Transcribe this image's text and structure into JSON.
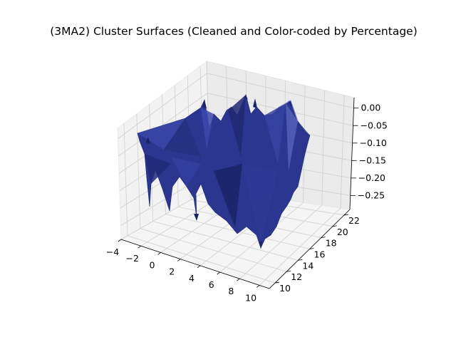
{
  "chart_data": {
    "type": "surface3d",
    "title": "(3MA2) Cluster Surfaces (Cleaned and Color-coded by Percentage)",
    "xlabel": "",
    "ylabel": "",
    "zlabel": "",
    "xlim": [
      -4,
      11
    ],
    "ylim": [
      9,
      23
    ],
    "zlim": [
      -0.29,
      0.03
    ],
    "x_ticks": [
      "−4",
      "−2",
      "0",
      "2",
      "4",
      "6",
      "8",
      "10"
    ],
    "y_ticks": [
      "10",
      "12",
      "14",
      "16",
      "18",
      "20",
      "22"
    ],
    "z_ticks": [
      "0.00",
      "−0.05",
      "−0.10",
      "−0.15",
      "−0.20",
      "−0.25"
    ],
    "surface_color": "#2b3691",
    "grid": true
  }
}
